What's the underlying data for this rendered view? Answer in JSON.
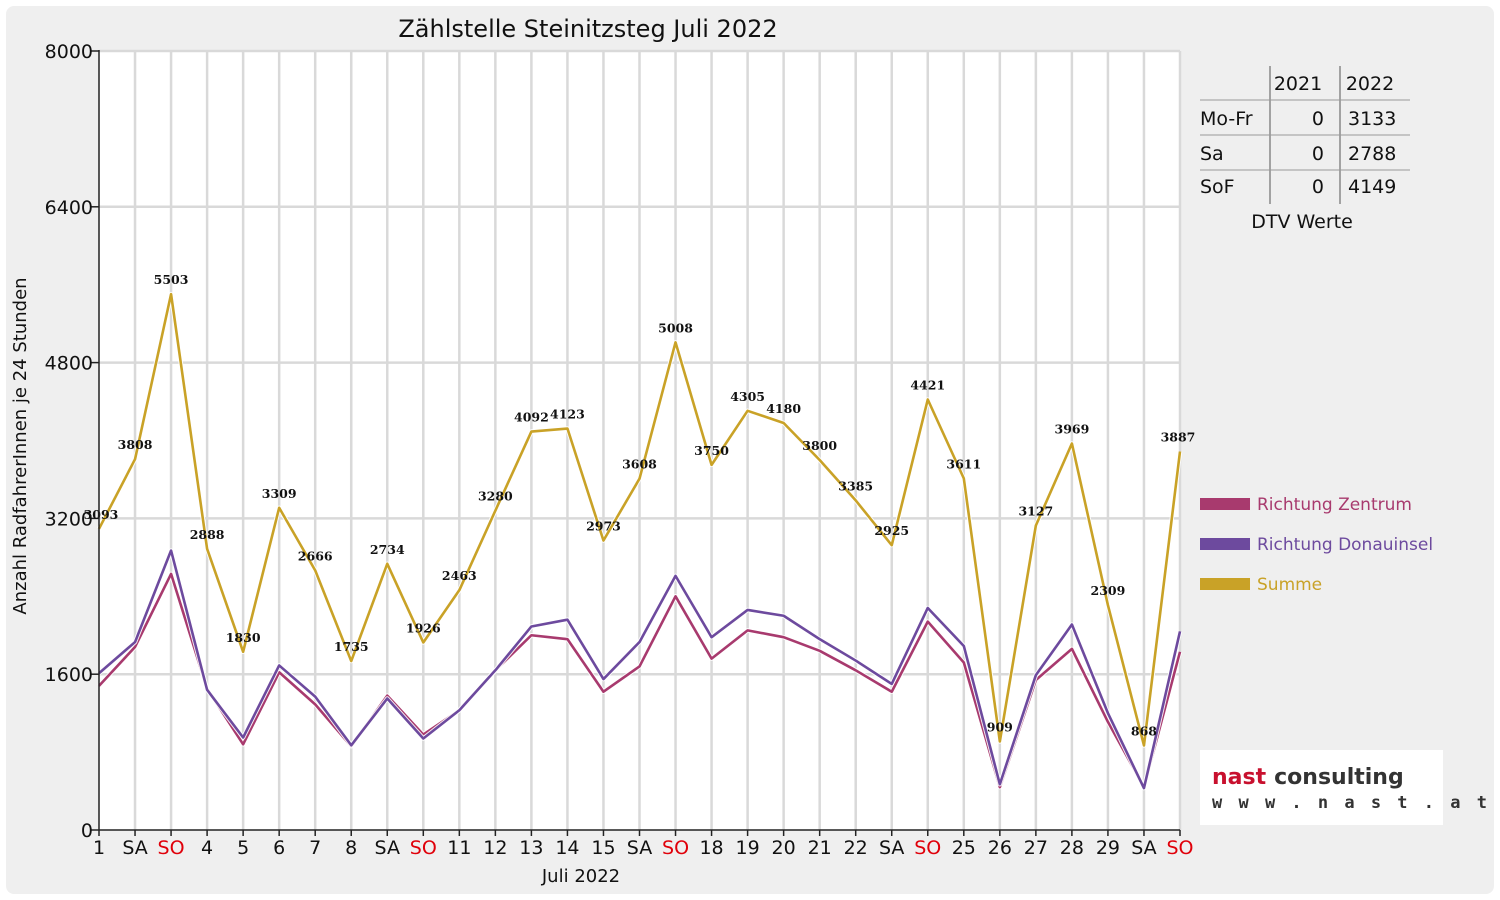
{
  "chart_data": {
    "type": "line",
    "title": "Zählstelle Steinitzsteg Juli 2022",
    "xlabel": "Juli 2022",
    "ylabel": "Anzahl RadfahrerInnen je 24 Stunden",
    "ylim": [
      0,
      8000
    ],
    "yticks": [
      0,
      1600,
      3200,
      4800,
      6400,
      8000
    ],
    "categories": [
      "1",
      "SA",
      "SO",
      "4",
      "5",
      "6",
      "7",
      "8",
      "SA",
      "SO",
      "11",
      "12",
      "13",
      "14",
      "15",
      "SA",
      "SO",
      "18",
      "19",
      "20",
      "21",
      "22",
      "SA",
      "SO",
      "25",
      "26",
      "27",
      "28",
      "29",
      "SA",
      "SO"
    ],
    "weekend_red": [
      false,
      false,
      true,
      false,
      false,
      false,
      false,
      false,
      false,
      true,
      false,
      false,
      false,
      false,
      false,
      false,
      true,
      false,
      false,
      false,
      false,
      false,
      false,
      true,
      false,
      false,
      false,
      false,
      false,
      false,
      true
    ],
    "grid": true,
    "legend_position": "right",
    "series": [
      {
        "name": "Richtung Zentrum",
        "color": "#a83a6e",
        "values": [
          1480,
          1880,
          2630,
          1450,
          880,
          1620,
          1290,
          860,
          1380,
          980,
          1230,
          1640,
          2000,
          1960,
          1420,
          1680,
          2400,
          1760,
          2050,
          1980,
          1840,
          1640,
          1420,
          2140,
          1720,
          440,
          1540,
          1860,
          1110,
          440,
          1830
        ]
      },
      {
        "name": "Richtung Donauinsel",
        "color": "#6d4a9e",
        "values": [
          1610,
          1930,
          2870,
          1440,
          950,
          1690,
          1370,
          870,
          1350,
          940,
          1230,
          1640,
          2090,
          2160,
          1550,
          1930,
          2610,
          1980,
          2260,
          2200,
          1960,
          1740,
          1500,
          2280,
          1890,
          470,
          1590,
          2110,
          1200,
          430,
          2040
        ]
      },
      {
        "name": "Summe",
        "color": "#c9a227",
        "values": [
          3093,
          3808,
          5503,
          2888,
          1830,
          3309,
          2666,
          1735,
          2734,
          1926,
          2463,
          3280,
          4092,
          4123,
          2973,
          3608,
          5008,
          3750,
          4305,
          4180,
          3800,
          3385,
          2925,
          4421,
          3611,
          909,
          3127,
          3969,
          2309,
          868,
          3887
        ]
      }
    ],
    "data_labels": [
      "3093",
      "3808",
      "5503",
      "2888",
      "1830",
      "3309",
      "2666",
      "1735",
      "2734",
      "1926",
      "2463",
      "3280",
      "4092",
      "4123",
      "2973",
      "3608",
      "5008",
      "3750",
      "4305",
      "4180",
      "3800",
      "3385",
      "2925",
      "4421",
      "3611",
      "909",
      "3127",
      "3969",
      "2309",
      "868",
      "3887"
    ]
  },
  "dtv_table": {
    "headers": [
      "",
      "2021",
      "2022"
    ],
    "rows": [
      {
        "label": "Mo-Fr",
        "v2021": "0",
        "v2022": "3133"
      },
      {
        "label": "Sa",
        "v2021": "0",
        "v2022": "2788"
      },
      {
        "label": "SoF",
        "v2021": "0",
        "v2022": "4149"
      }
    ],
    "caption": "DTV Werte"
  },
  "logo": {
    "line1a": "nast",
    "line1b": "consulting",
    "line2": "w w w . n a s t . a t"
  },
  "colors": {
    "gridline": "#d9d9d9",
    "background": "#efefef",
    "plot_bg": "#ffffff",
    "weekend_label": "#e0000a"
  }
}
